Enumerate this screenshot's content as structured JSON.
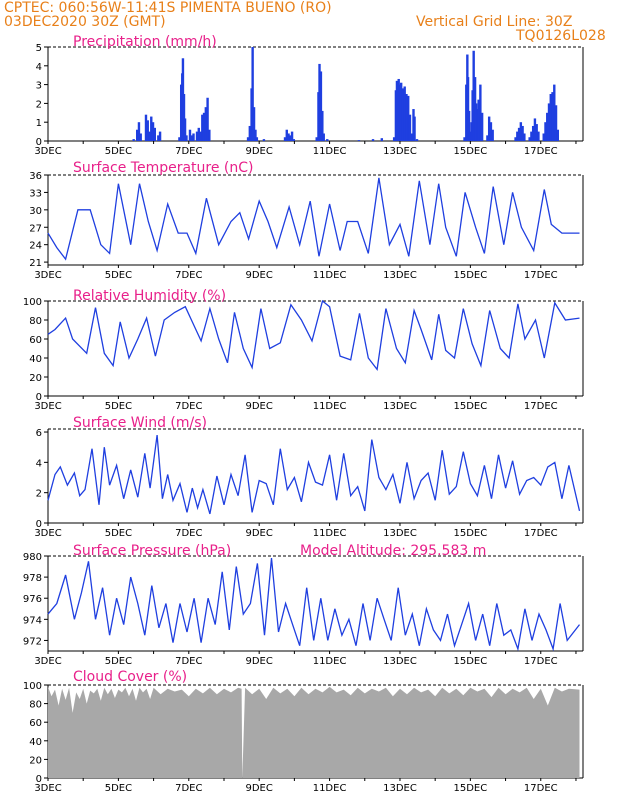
{
  "header": {
    "line1": "CPTEC:   060:56W-11:41S   PIMENTA BUENO (RO)",
    "line2": "03DEC2020 30Z (GMT)",
    "vgrid": "Vertical Grid Line: 30Z",
    "model": "TQ0126L028"
  },
  "colors": {
    "header": "#e8801a",
    "title": "#e8208a",
    "line": "#1f3fe0",
    "bars": "#1f3fe0",
    "cloud": "#a8a8a8"
  },
  "chart_data": [
    {
      "type": "bar",
      "title": "Precipitation (mm/h)",
      "ylim": [
        0,
        5
      ],
      "yticks": [
        0,
        1,
        2,
        3,
        4,
        5
      ],
      "xticks": [
        "3DEC",
        "5DEC",
        "7DEC",
        "9DEC",
        "11DEC",
        "13DEC",
        "15DEC",
        "17DEC"
      ],
      "x_start": "03DEC2020",
      "x_days": 15,
      "points": [
        [
          2.4,
          0.1
        ],
        [
          2.5,
          0.6
        ],
        [
          2.55,
          1.0
        ],
        [
          2.6,
          0.4
        ],
        [
          2.75,
          1.4
        ],
        [
          2.8,
          1.1
        ],
        [
          2.85,
          0.5
        ],
        [
          2.9,
          1.3
        ],
        [
          2.95,
          1.0
        ],
        [
          3.0,
          0.7
        ],
        [
          3.1,
          0.3
        ],
        [
          3.15,
          0.5
        ],
        [
          3.7,
          0.2
        ],
        [
          3.75,
          3.0
        ],
        [
          3.78,
          3.6
        ],
        [
          3.8,
          4.4
        ],
        [
          3.83,
          2.5
        ],
        [
          3.86,
          1.2
        ],
        [
          3.9,
          0.3
        ],
        [
          4.0,
          0.6
        ],
        [
          4.05,
          0.3
        ],
        [
          4.1,
          0.4
        ],
        [
          4.2,
          0.5
        ],
        [
          4.25,
          0.7
        ],
        [
          4.3,
          0.5
        ],
        [
          4.35,
          1.4
        ],
        [
          4.4,
          1.5
        ],
        [
          4.45,
          1.8
        ],
        [
          4.5,
          2.3
        ],
        [
          4.55,
          0.6
        ],
        [
          5.65,
          0.2
        ],
        [
          5.7,
          0.8
        ],
        [
          5.75,
          2.8
        ],
        [
          5.78,
          5.0
        ],
        [
          5.82,
          1.8
        ],
        [
          5.86,
          0.6
        ],
        [
          5.9,
          0.2
        ],
        [
          6.1,
          0.1
        ],
        [
          6.7,
          0.2
        ],
        [
          6.75,
          0.6
        ],
        [
          6.8,
          0.4
        ],
        [
          6.85,
          0.3
        ],
        [
          6.9,
          0.5
        ],
        [
          6.95,
          0.1
        ],
        [
          7.6,
          0.2
        ],
        [
          7.65,
          2.6
        ],
        [
          7.68,
          4.1
        ],
        [
          7.72,
          3.7
        ],
        [
          7.76,
          1.6
        ],
        [
          7.8,
          0.4
        ],
        [
          7.9,
          0.1
        ],
        [
          8.8,
          0.05
        ],
        [
          9.2,
          0.1
        ],
        [
          9.45,
          0.15
        ],
        [
          9.8,
          0.2
        ],
        [
          9.85,
          2.7
        ],
        [
          9.88,
          3.2
        ],
        [
          9.9,
          3.0
        ],
        [
          9.93,
          3.3
        ],
        [
          9.96,
          3.0
        ],
        [
          10.0,
          3.1
        ],
        [
          10.05,
          2.8
        ],
        [
          10.1,
          2.9
        ],
        [
          10.15,
          2.5
        ],
        [
          10.2,
          2.4
        ],
        [
          10.25,
          1.4
        ],
        [
          10.3,
          0.4
        ],
        [
          10.35,
          1.7
        ],
        [
          10.38,
          1.3
        ],
        [
          10.45,
          0.1
        ],
        [
          11.8,
          0.2
        ],
        [
          11.85,
          3.0
        ],
        [
          11.88,
          4.6
        ],
        [
          11.9,
          3.4
        ],
        [
          11.93,
          1.6
        ],
        [
          11.96,
          0.5
        ],
        [
          12.0,
          1.0
        ],
        [
          12.03,
          2.7
        ],
        [
          12.06,
          4.8
        ],
        [
          12.1,
          3.4
        ],
        [
          12.13,
          2.0
        ],
        [
          12.17,
          1.7
        ],
        [
          12.2,
          2.2
        ],
        [
          12.25,
          3.0
        ],
        [
          12.3,
          1.5
        ],
        [
          12.45,
          0.3
        ],
        [
          12.5,
          1.3
        ],
        [
          12.55,
          1.0
        ],
        [
          12.6,
          0.6
        ],
        [
          13.25,
          0.2
        ],
        [
          13.3,
          0.5
        ],
        [
          13.35,
          0.7
        ],
        [
          13.4,
          1.0
        ],
        [
          13.45,
          0.8
        ],
        [
          13.5,
          0.4
        ],
        [
          13.65,
          0.2
        ],
        [
          13.7,
          0.5
        ],
        [
          13.75,
          0.8
        ],
        [
          13.8,
          1.2
        ],
        [
          13.85,
          0.9
        ],
        [
          13.9,
          0.5
        ],
        [
          14.05,
          0.4
        ],
        [
          14.1,
          1.0
        ],
        [
          14.15,
          1.5
        ],
        [
          14.2,
          2.0
        ],
        [
          14.25,
          2.5
        ],
        [
          14.3,
          2.6
        ],
        [
          14.35,
          3.0
        ],
        [
          14.4,
          1.9
        ],
        [
          14.45,
          0.6
        ]
      ]
    },
    {
      "type": "line",
      "title": "Surface Temperature (nC)",
      "ylim": [
        20.5,
        36
      ],
      "yticks": [
        21,
        24,
        27,
        30,
        33,
        36
      ],
      "xticks": [
        "3DEC",
        "5DEC",
        "7DEC",
        "9DEC",
        "11DEC",
        "13DEC",
        "15DEC",
        "17DEC"
      ],
      "x": [
        0,
        0.25,
        0.5,
        0.85,
        1.2,
        1.5,
        1.75,
        2.0,
        2.35,
        2.6,
        2.85,
        3.1,
        3.4,
        3.7,
        3.95,
        4.2,
        4.5,
        4.85,
        5.2,
        5.45,
        5.7,
        6.0,
        6.25,
        6.5,
        6.85,
        7.15,
        7.45,
        7.7,
        8.0,
        8.3,
        8.5,
        8.8,
        9.1,
        9.4,
        9.7,
        10.0,
        10.25,
        10.55,
        10.85,
        11.1,
        11.3,
        11.6,
        11.85,
        12.15,
        12.4,
        12.65,
        12.95,
        13.2,
        13.45,
        13.8,
        14.1,
        14.3,
        14.6,
        14.85,
        15.1
      ],
      "y": [
        26,
        23.5,
        21.5,
        30,
        30,
        24,
        22.5,
        34.5,
        24,
        34.5,
        28,
        23,
        31,
        26,
        26,
        22.5,
        32,
        24,
        28,
        29.5,
        25,
        31.5,
        28,
        23.5,
        30.5,
        24,
        31.5,
        22,
        31,
        23,
        28,
        28,
        22.5,
        35.5,
        24,
        27.5,
        22,
        35,
        24,
        34.5,
        27,
        22,
        33,
        27,
        22.5,
        34,
        24,
        33,
        27,
        23,
        33.5,
        27.5,
        26,
        26,
        26
      ]
    },
    {
      "type": "line",
      "title": "Relative Humidity (%)",
      "ylim": [
        0,
        100
      ],
      "yticks": [
        0,
        20,
        40,
        60,
        80,
        100
      ],
      "xticks": [
        "3DEC",
        "5DEC",
        "7DEC",
        "9DEC",
        "11DEC",
        "13DEC",
        "15DEC",
        "17DEC"
      ],
      "x": [
        0,
        0.2,
        0.5,
        0.7,
        1.1,
        1.35,
        1.6,
        1.85,
        2.05,
        2.3,
        2.55,
        2.8,
        3.05,
        3.3,
        3.6,
        3.9,
        4.1,
        4.35,
        4.6,
        4.85,
        5.1,
        5.3,
        5.55,
        5.8,
        6.05,
        6.3,
        6.6,
        6.9,
        7.2,
        7.5,
        7.8,
        8.0,
        8.3,
        8.6,
        8.85,
        9.1,
        9.35,
        9.6,
        9.9,
        10.15,
        10.4,
        10.6,
        10.9,
        11.1,
        11.3,
        11.55,
        11.8,
        12.05,
        12.3,
        12.55,
        12.85,
        13.1,
        13.35,
        13.55,
        13.85,
        14.1,
        14.4,
        14.7,
        15.1
      ],
      "y": [
        65,
        70,
        82,
        60,
        45,
        93,
        45,
        32,
        78,
        40,
        60,
        82,
        42,
        80,
        88,
        94,
        78,
        58,
        92,
        60,
        35,
        88,
        50,
        30,
        92,
        50,
        56,
        96,
        80,
        58,
        100,
        94,
        42,
        38,
        87,
        40,
        28,
        92,
        50,
        35,
        90,
        70,
        38,
        86,
        48,
        40,
        92,
        55,
        32,
        90,
        50,
        40,
        97,
        60,
        80,
        40,
        98,
        80,
        82
      ]
    },
    {
      "type": "line",
      "title": "Surface Wind (m/s)",
      "ylim": [
        0,
        6.2
      ],
      "yticks": [
        0,
        2,
        4,
        6
      ],
      "xticks": [
        "3DEC",
        "5DEC",
        "7DEC",
        "9DEC",
        "11DEC",
        "13DEC",
        "15DEC",
        "17DEC"
      ],
      "x": [
        0,
        0.2,
        0.35,
        0.55,
        0.75,
        0.9,
        1.05,
        1.25,
        1.45,
        1.6,
        1.75,
        1.95,
        2.15,
        2.35,
        2.55,
        2.75,
        2.9,
        3.1,
        3.25,
        3.4,
        3.55,
        3.75,
        3.95,
        4.1,
        4.25,
        4.4,
        4.6,
        4.8,
        5.0,
        5.2,
        5.4,
        5.6,
        5.8,
        6.0,
        6.2,
        6.4,
        6.6,
        6.8,
        7.0,
        7.2,
        7.4,
        7.6,
        7.8,
        8.0,
        8.2,
        8.4,
        8.6,
        8.8,
        9.0,
        9.2,
        9.4,
        9.6,
        9.8,
        10.0,
        10.2,
        10.4,
        10.6,
        10.8,
        11.0,
        11.2,
        11.4,
        11.6,
        11.8,
        12.0,
        12.2,
        12.4,
        12.6,
        12.8,
        13.0,
        13.2,
        13.4,
        13.6,
        13.8,
        14.0,
        14.2,
        14.4,
        14.6,
        14.8,
        15.1
      ],
      "y": [
        1.5,
        3.2,
        3.7,
        2.5,
        3.3,
        1.8,
        2.2,
        4.9,
        1.2,
        5.0,
        2.5,
        3.8,
        1.6,
        3.5,
        1.7,
        4.6,
        2.3,
        5.8,
        1.6,
        3.2,
        1.5,
        2.6,
        0.7,
        2.3,
        1.0,
        2.2,
        0.6,
        3.1,
        1.2,
        3.2,
        1.8,
        4.5,
        0.7,
        2.8,
        2.6,
        1.2,
        4.9,
        2.2,
        3.0,
        1.4,
        4.0,
        2.7,
        2.5,
        4.5,
        1.5,
        4.6,
        1.8,
        2.4,
        0.8,
        5.5,
        3.0,
        2.2,
        3.2,
        1.3,
        4.0,
        1.6,
        2.8,
        3.3,
        1.5,
        4.8,
        1.9,
        2.4,
        4.7,
        2.6,
        1.8,
        3.8,
        1.6,
        4.5,
        2.3,
        4.1,
        1.9,
        2.8,
        3.0,
        2.5,
        3.7,
        4.0,
        1.6,
        3.8,
        0.8
      ]
    },
    {
      "type": "line",
      "title": "Surface Pressure (hPa)",
      "annotation": "Model Altitude: 295.583  m",
      "ylim": [
        971,
        980
      ],
      "yticks": [
        972,
        974,
        976,
        978,
        980
      ],
      "xticks": [
        "3DEC",
        "5DEC",
        "7DEC",
        "9DEC",
        "11DEC",
        "13DEC",
        "15DEC",
        "17DEC"
      ],
      "x": [
        0,
        0.25,
        0.5,
        0.75,
        0.95,
        1.15,
        1.35,
        1.55,
        1.75,
        1.95,
        2.15,
        2.35,
        2.55,
        2.75,
        2.95,
        3.15,
        3.35,
        3.55,
        3.75,
        3.95,
        4.15,
        4.35,
        4.55,
        4.75,
        4.95,
        5.15,
        5.35,
        5.55,
        5.75,
        5.95,
        6.15,
        6.35,
        6.55,
        6.75,
        6.95,
        7.15,
        7.35,
        7.55,
        7.75,
        7.95,
        8.15,
        8.35,
        8.55,
        8.75,
        8.95,
        9.15,
        9.35,
        9.55,
        9.75,
        9.95,
        10.15,
        10.35,
        10.55,
        10.75,
        10.95,
        11.15,
        11.35,
        11.55,
        11.75,
        11.95,
        12.15,
        12.35,
        12.55,
        12.75,
        12.95,
        13.15,
        13.35,
        13.55,
        13.75,
        13.95,
        14.15,
        14.35,
        14.55,
        14.75,
        15.1
      ],
      "y": [
        974.5,
        975.5,
        978.2,
        974.0,
        976.5,
        979.5,
        974.0,
        977.0,
        972.5,
        976.0,
        973.5,
        978.0,
        975.5,
        972.5,
        977.2,
        973.2,
        975.5,
        971.8,
        975.5,
        972.8,
        976.0,
        971.8,
        976.0,
        973.5,
        978.5,
        973.0,
        979.0,
        974.5,
        975.5,
        979.3,
        972.5,
        979.8,
        972.8,
        975.5,
        973.5,
        971.5,
        977.0,
        972.0,
        976.0,
        972.0,
        975.0,
        972.5,
        974.0,
        971.5,
        975.5,
        972.0,
        976.0,
        974.0,
        972.0,
        977.0,
        972.5,
        974.5,
        971.5,
        975.0,
        973.0,
        972.0,
        974.5,
        971.5,
        973.5,
        975.5,
        972.0,
        974.5,
        971.5,
        975.5,
        972.5,
        973.0,
        971.2,
        975.0,
        972.0,
        974.5,
        973.0,
        971.2,
        975.5,
        972.0,
        973.5
      ]
    },
    {
      "type": "area",
      "title": "Cloud Cover (%)",
      "ylim": [
        0,
        100
      ],
      "yticks": [
        0,
        20,
        40,
        60,
        80,
        100
      ],
      "xticks": [
        "3DEC",
        "5DEC",
        "7DEC",
        "9DEC",
        "11DEC",
        "13DEC",
        "15DEC",
        "17DEC"
      ],
      "x": [
        0,
        0.1,
        0.2,
        0.3,
        0.4,
        0.5,
        0.6,
        0.7,
        0.8,
        0.9,
        1.0,
        1.1,
        1.2,
        1.3,
        1.4,
        1.5,
        1.6,
        1.7,
        1.8,
        1.9,
        2.0,
        2.1,
        2.2,
        2.3,
        2.4,
        2.5,
        2.6,
        2.7,
        2.8,
        2.9,
        3.0,
        3.2,
        3.4,
        3.6,
        3.8,
        4.0,
        4.2,
        4.4,
        4.6,
        4.8,
        5.0,
        5.2,
        5.4,
        5.5,
        5.52,
        5.6,
        5.8,
        6.0,
        6.2,
        6.4,
        6.6,
        6.8,
        7.0,
        7.2,
        7.4,
        7.6,
        7.8,
        8.0,
        8.2,
        8.4,
        8.6,
        8.8,
        9.0,
        9.2,
        9.4,
        9.6,
        9.8,
        10.0,
        10.2,
        10.4,
        10.6,
        10.8,
        11.0,
        11.2,
        11.4,
        11.6,
        11.8,
        12.0,
        12.2,
        12.4,
        12.6,
        12.8,
        13.0,
        13.2,
        13.4,
        13.6,
        13.8,
        14.0,
        14.2,
        14.4,
        14.6,
        14.8,
        15.1
      ],
      "y": [
        98,
        88,
        95,
        78,
        96,
        84,
        97,
        70,
        92,
        85,
        96,
        80,
        94,
        91,
        96,
        83,
        97,
        90,
        96,
        86,
        95,
        92,
        97,
        88,
        96,
        83,
        97,
        92,
        96,
        85,
        97,
        90,
        96,
        93,
        95,
        88,
        96,
        91,
        97,
        90,
        96,
        92,
        97,
        96,
        0,
        97,
        90,
        96,
        85,
        97,
        91,
        96,
        88,
        97,
        90,
        96,
        92,
        98,
        92,
        95,
        89,
        97,
        91,
        96,
        93,
        97,
        88,
        96,
        90,
        97,
        92,
        95,
        88,
        97,
        91,
        96,
        89,
        97,
        93,
        96,
        87,
        97,
        90,
        96,
        92,
        97,
        85,
        96,
        78,
        97,
        93,
        96,
        95
      ]
    }
  ]
}
